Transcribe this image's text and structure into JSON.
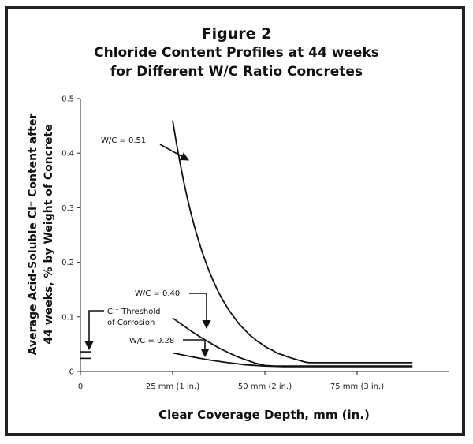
{
  "chart_data": {
    "type": "line",
    "title": "Figure 2",
    "subtitle": [
      "Chloride Content Profiles at 44 weeks",
      "for Different W/C Ratio Concretes"
    ],
    "xlabel": "Clear Coverage Depth, mm (in.)",
    "ylabel": [
      "Average Acid-Soluble Cl⁻ Content after",
      "44 weeks, % by Weight of Concrete"
    ],
    "xlim": [
      0,
      100
    ],
    "ylim": [
      0,
      0.5
    ],
    "x_ticks": [
      {
        "value": 0,
        "label": "0"
      },
      {
        "value": 25,
        "label": "25 mm (1 in.)"
      },
      {
        "value": 50,
        "label": "50 mm (2 in.)"
      },
      {
        "value": 75,
        "label": "75 mm (3 in.)"
      }
    ],
    "y_ticks": [
      {
        "value": 0,
        "label": "0"
      },
      {
        "value": 0.1,
        "label": "0.1"
      },
      {
        "value": 0.2,
        "label": "0.2"
      },
      {
        "value": 0.3,
        "label": "0.3"
      },
      {
        "value": 0.4,
        "label": "0.4"
      },
      {
        "value": 0.5,
        "label": "0.5"
      }
    ],
    "grid": false,
    "series": [
      {
        "name": "W/C = 0.51",
        "x": [
          25,
          26,
          27,
          28,
          29,
          30,
          31,
          32,
          33,
          34,
          35,
          36,
          37,
          38,
          39,
          40,
          41,
          42,
          43,
          44,
          45,
          46,
          47,
          48,
          49,
          50,
          51,
          52,
          53,
          54,
          55,
          56,
          57,
          58,
          59,
          60,
          61,
          62,
          63,
          64,
          65,
          66,
          67,
          68,
          69,
          70,
          71,
          72,
          73,
          74,
          75,
          76,
          77,
          78,
          79,
          80,
          81,
          82,
          83,
          84,
          85,
          86,
          87,
          88,
          89,
          90
        ],
        "y": [
          0.46,
          0.419,
          0.382,
          0.348,
          0.317,
          0.289,
          0.263,
          0.24,
          0.219,
          0.2,
          0.182,
          0.166,
          0.151,
          0.138,
          0.126,
          0.115,
          0.105,
          0.096,
          0.087,
          0.08,
          0.073,
          0.066,
          0.061,
          0.055,
          0.051,
          0.046,
          0.042,
          0.039,
          0.035,
          0.032,
          0.03,
          0.027,
          0.025,
          0.023,
          0.021,
          0.019,
          0.017,
          0.016,
          0.016,
          0.016,
          0.016,
          0.016,
          0.016,
          0.016,
          0.016,
          0.016,
          0.016,
          0.016,
          0.016,
          0.016,
          0.016,
          0.016,
          0.016,
          0.016,
          0.016,
          0.016,
          0.016,
          0.016,
          0.016,
          0.016,
          0.016,
          0.016,
          0.016,
          0.016,
          0.016,
          0.016
        ]
      },
      {
        "name": "W/C = 0.40",
        "x": [
          25,
          27.5,
          30,
          32.5,
          35,
          37.5,
          40,
          42.5,
          45,
          47.5,
          50,
          52.5,
          55,
          57.5,
          60,
          62.5,
          65,
          67.5,
          70,
          72.5,
          75,
          77.5,
          80,
          82.5,
          85,
          87.5,
          90
        ],
        "y": [
          0.098,
          0.086,
          0.074,
          0.063,
          0.053,
          0.043,
          0.035,
          0.027,
          0.021,
          0.015,
          0.011,
          0.01,
          0.01,
          0.01,
          0.01,
          0.01,
          0.01,
          0.01,
          0.01,
          0.01,
          0.01,
          0.01,
          0.01,
          0.01,
          0.01,
          0.01,
          0.01
        ]
      },
      {
        "name": "W/C = 0.28",
        "x": [
          25,
          30,
          35,
          40,
          45,
          50,
          55,
          60,
          65,
          70,
          75,
          80,
          85,
          90
        ],
        "y": [
          0.034,
          0.027,
          0.021,
          0.016,
          0.012,
          0.01,
          0.009,
          0.009,
          0.009,
          0.009,
          0.009,
          0.009,
          0.009,
          0.009
        ]
      }
    ],
    "threshold": {
      "label": [
        "Cl⁻ Threshold",
        "of Corrosion"
      ],
      "range": [
        0.024,
        0.036
      ],
      "x": [
        0,
        3
      ]
    },
    "annotations": [
      {
        "text": "W/C = 0.51",
        "points_to": "W/C = 0.51"
      },
      {
        "text": "W/C = 0.40",
        "points_to": "W/C = 0.40"
      },
      {
        "text": "W/C = 0.28",
        "points_to": "W/C = 0.28"
      }
    ]
  }
}
